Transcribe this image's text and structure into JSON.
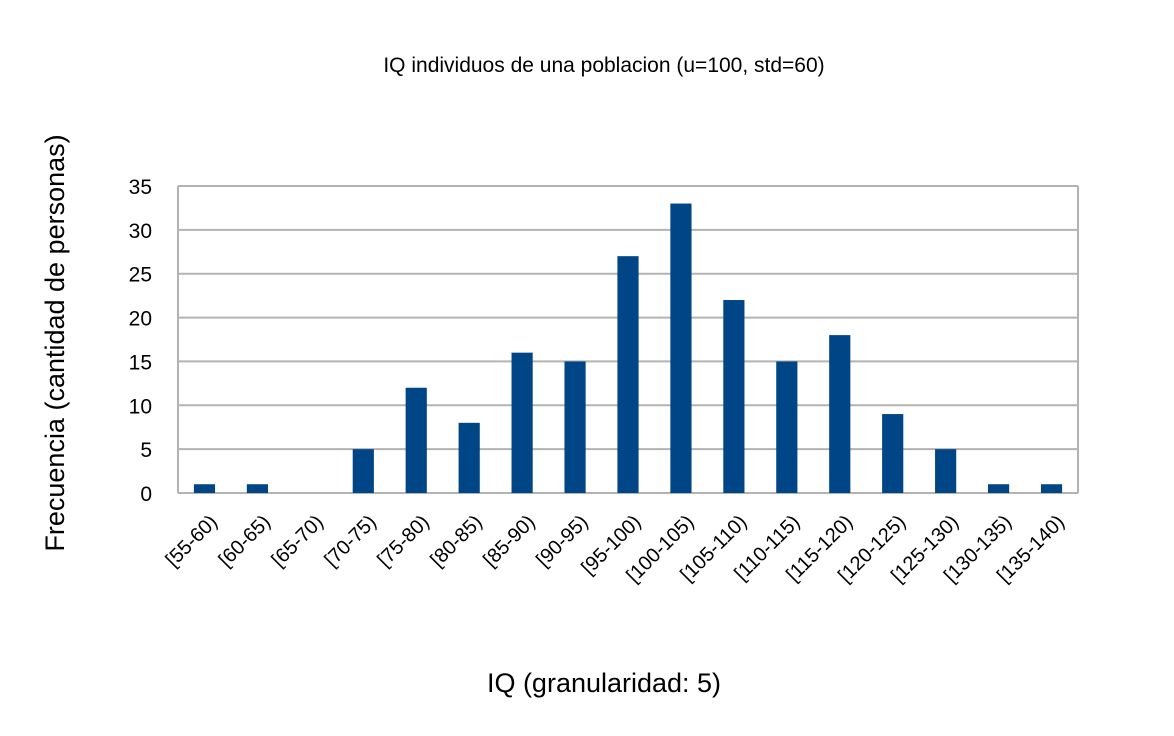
{
  "chart_data": {
    "type": "bar",
    "title": "IQ individuos de una poblacion (u=100, std=60)",
    "xlabel": "IQ (granularidad: 5)",
    "ylabel": "Frecuencia (cantidad de personas)",
    "categories": [
      "[55-60)",
      "[60-65)",
      "[65-70)",
      "[70-75)",
      "[75-80)",
      "[80-85)",
      "[85-90)",
      "[90-95)",
      "[95-100)",
      "[100-105)",
      "[105-110)",
      "[110-115)",
      "[115-120)",
      "[120-125)",
      "[125-130)",
      "[130-135)",
      "[135-140)"
    ],
    "values": [
      1,
      1,
      0,
      5,
      12,
      8,
      16,
      15,
      27,
      33,
      22,
      15,
      18,
      9,
      5,
      1,
      1
    ],
    "ylim": [
      0,
      35
    ],
    "yticks": [
      0,
      5,
      10,
      15,
      20,
      25,
      30,
      35
    ],
    "grid": true,
    "legend": "none",
    "bar_color": "#004586",
    "grid_color": "#b3b3b3"
  }
}
